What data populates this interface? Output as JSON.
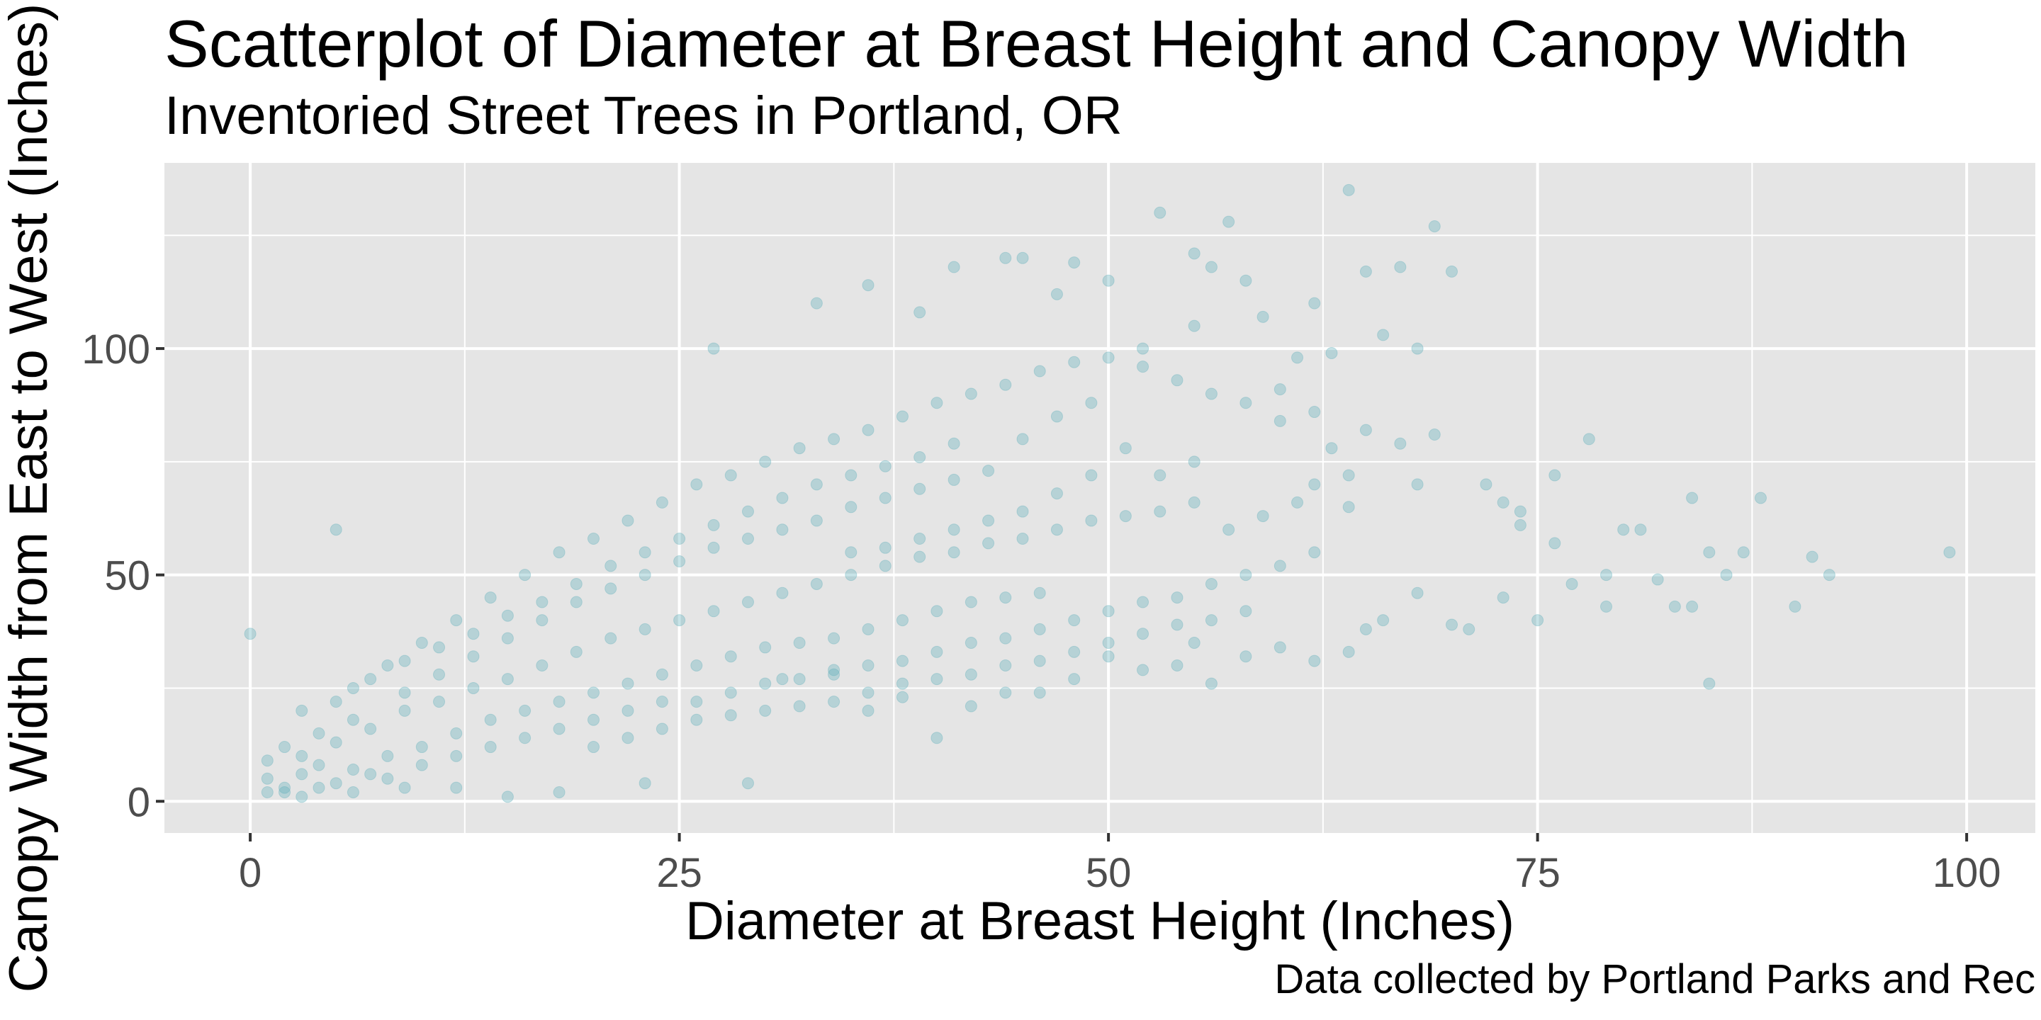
{
  "chart_data": {
    "type": "scatter",
    "title": "Scatterplot of Diameter at Breast Height and Canopy Width",
    "subtitle": "Inventoried Street Trees in Portland, OR",
    "caption": "Data collected by Portland Parks and Rec",
    "xlabel": "Diameter at Breast Height (Inches)",
    "ylabel": "Canopy Width from East to West (Inches)",
    "xlim": [
      -5,
      104
    ],
    "ylim": [
      -7,
      141
    ],
    "x_ticks": [
      0,
      25,
      50,
      75,
      100
    ],
    "y_ticks": [
      0,
      50,
      100
    ],
    "grid": true,
    "point_color": "#5fb0bb",
    "point_opacity": 0.35,
    "panel_color": "#e5e5e5",
    "grid_color": "#ffffff",
    "points": [
      [
        0,
        37
      ],
      [
        5,
        60
      ],
      [
        64,
        135
      ],
      [
        53,
        130
      ],
      [
        57,
        128
      ],
      [
        69,
        127
      ],
      [
        55,
        121
      ],
      [
        56,
        118
      ],
      [
        58,
        115
      ],
      [
        48,
        119
      ],
      [
        41,
        118
      ],
      [
        44,
        120
      ],
      [
        45,
        120
      ],
      [
        67,
        118
      ],
      [
        70,
        117
      ],
      [
        65,
        117
      ],
      [
        50,
        115
      ],
      [
        62,
        110
      ],
      [
        59,
        107
      ],
      [
        66,
        103
      ],
      [
        68,
        100
      ],
      [
        63,
        99
      ],
      [
        61,
        98
      ],
      [
        27,
        100
      ],
      [
        36,
        114
      ],
      [
        33,
        110
      ],
      [
        47,
        112
      ],
      [
        39,
        108
      ],
      [
        55,
        105
      ],
      [
        52,
        100
      ],
      [
        60,
        91
      ],
      [
        60,
        84
      ],
      [
        62,
        86
      ],
      [
        65,
        82
      ],
      [
        67,
        79
      ],
      [
        69,
        81
      ],
      [
        63,
        78
      ],
      [
        64,
        72
      ],
      [
        62,
        70
      ],
      [
        64,
        65
      ],
      [
        68,
        70
      ],
      [
        72,
        70
      ],
      [
        74,
        64
      ],
      [
        78,
        80
      ],
      [
        76,
        72
      ],
      [
        80,
        60
      ],
      [
        81,
        60
      ],
      [
        84,
        67
      ],
      [
        88,
        67
      ],
      [
        85,
        55
      ],
      [
        86,
        50
      ],
      [
        87,
        55
      ],
      [
        91,
        54
      ],
      [
        92,
        50
      ],
      [
        99,
        55
      ],
      [
        84,
        43
      ],
      [
        83,
        43
      ],
      [
        85,
        26
      ],
      [
        90,
        43
      ],
      [
        82,
        49
      ],
      [
        79,
        43
      ],
      [
        77,
        48
      ],
      [
        73,
        66
      ],
      [
        74,
        61
      ],
      [
        76,
        57
      ],
      [
        79,
        50
      ],
      [
        75,
        40
      ],
      [
        73,
        45
      ],
      [
        71,
        38
      ],
      [
        70,
        39
      ],
      [
        68,
        46
      ],
      [
        66,
        40
      ],
      [
        65,
        38
      ],
      [
        64,
        33
      ],
      [
        62,
        31
      ],
      [
        60,
        34
      ],
      [
        58,
        32
      ],
      [
        56,
        26
      ],
      [
        55,
        35
      ],
      [
        54,
        30
      ],
      [
        52,
        29
      ],
      [
        50,
        32
      ],
      [
        48,
        27
      ],
      [
        46,
        24
      ],
      [
        44,
        24
      ],
      [
        42,
        21
      ],
      [
        40,
        14
      ],
      [
        38,
        23
      ],
      [
        36,
        20
      ],
      [
        34,
        28
      ],
      [
        31,
        27
      ],
      [
        29,
        4
      ],
      [
        23,
        4
      ],
      [
        18,
        2
      ],
      [
        15,
        1
      ],
      [
        12,
        3
      ],
      [
        9,
        3
      ],
      [
        6,
        2
      ],
      [
        3,
        1
      ],
      [
        1,
        2
      ],
      [
        2,
        3
      ],
      [
        1,
        5
      ],
      [
        3,
        6
      ],
      [
        4,
        8
      ],
      [
        2,
        12
      ],
      [
        1,
        9
      ],
      [
        5,
        4
      ],
      [
        7,
        6
      ],
      [
        8,
        10
      ],
      [
        10,
        8
      ],
      [
        2,
        2
      ],
      [
        4,
        3
      ],
      [
        6,
        7
      ],
      [
        3,
        10
      ],
      [
        5,
        13
      ],
      [
        7,
        16
      ],
      [
        9,
        20
      ],
      [
        11,
        22
      ],
      [
        13,
        25
      ],
      [
        15,
        27
      ],
      [
        17,
        30
      ],
      [
        19,
        33
      ],
      [
        21,
        36
      ],
      [
        23,
        38
      ],
      [
        25,
        40
      ],
      [
        27,
        42
      ],
      [
        29,
        44
      ],
      [
        31,
        46
      ],
      [
        33,
        48
      ],
      [
        35,
        50
      ],
      [
        37,
        52
      ],
      [
        39,
        54
      ],
      [
        41,
        55
      ],
      [
        43,
        57
      ],
      [
        45,
        58
      ],
      [
        47,
        60
      ],
      [
        49,
        62
      ],
      [
        51,
        63
      ],
      [
        53,
        64
      ],
      [
        55,
        66
      ],
      [
        8,
        5
      ],
      [
        10,
        12
      ],
      [
        12,
        15
      ],
      [
        14,
        18
      ],
      [
        16,
        20
      ],
      [
        18,
        22
      ],
      [
        20,
        24
      ],
      [
        22,
        26
      ],
      [
        24,
        28
      ],
      [
        26,
        30
      ],
      [
        28,
        32
      ],
      [
        30,
        34
      ],
      [
        32,
        35
      ],
      [
        34,
        36
      ],
      [
        36,
        38
      ],
      [
        38,
        40
      ],
      [
        40,
        42
      ],
      [
        42,
        44
      ],
      [
        44,
        45
      ],
      [
        46,
        46
      ],
      [
        6,
        25
      ],
      [
        8,
        30
      ],
      [
        10,
        35
      ],
      [
        12,
        40
      ],
      [
        14,
        45
      ],
      [
        16,
        50
      ],
      [
        18,
        55
      ],
      [
        20,
        58
      ],
      [
        22,
        62
      ],
      [
        24,
        66
      ],
      [
        26,
        70
      ],
      [
        28,
        72
      ],
      [
        30,
        75
      ],
      [
        32,
        78
      ],
      [
        34,
        80
      ],
      [
        36,
        82
      ],
      [
        38,
        85
      ],
      [
        40,
        88
      ],
      [
        42,
        90
      ],
      [
        44,
        92
      ],
      [
        46,
        95
      ],
      [
        48,
        97
      ],
      [
        50,
        98
      ],
      [
        52,
        96
      ],
      [
        54,
        93
      ],
      [
        56,
        90
      ],
      [
        58,
        88
      ],
      [
        45,
        80
      ],
      [
        47,
        85
      ],
      [
        49,
        88
      ],
      [
        4,
        15
      ],
      [
        6,
        18
      ],
      [
        9,
        24
      ],
      [
        11,
        28
      ],
      [
        13,
        32
      ],
      [
        15,
        36
      ],
      [
        17,
        40
      ],
      [
        19,
        44
      ],
      [
        21,
        47
      ],
      [
        23,
        50
      ],
      [
        25,
        53
      ],
      [
        27,
        56
      ],
      [
        29,
        58
      ],
      [
        31,
        60
      ],
      [
        33,
        62
      ],
      [
        35,
        65
      ],
      [
        37,
        67
      ],
      [
        39,
        69
      ],
      [
        41,
        71
      ],
      [
        43,
        73
      ],
      [
        12,
        10
      ],
      [
        14,
        12
      ],
      [
        16,
        14
      ],
      [
        18,
        16
      ],
      [
        20,
        18
      ],
      [
        22,
        20
      ],
      [
        24,
        22
      ],
      [
        26,
        22
      ],
      [
        28,
        24
      ],
      [
        30,
        26
      ],
      [
        32,
        27
      ],
      [
        34,
        29
      ],
      [
        36,
        30
      ],
      [
        38,
        31
      ],
      [
        40,
        33
      ],
      [
        42,
        35
      ],
      [
        44,
        36
      ],
      [
        46,
        38
      ],
      [
        48,
        40
      ],
      [
        50,
        42
      ],
      [
        52,
        44
      ],
      [
        54,
        45
      ],
      [
        56,
        48
      ],
      [
        58,
        50
      ],
      [
        60,
        52
      ],
      [
        62,
        55
      ],
      [
        57,
        60
      ],
      [
        59,
        63
      ],
      [
        61,
        66
      ],
      [
        53,
        72
      ],
      [
        55,
        75
      ],
      [
        51,
        78
      ],
      [
        49,
        72
      ],
      [
        47,
        68
      ],
      [
        45,
        64
      ],
      [
        43,
        62
      ],
      [
        41,
        60
      ],
      [
        39,
        58
      ],
      [
        37,
        56
      ],
      [
        35,
        55
      ],
      [
        3,
        20
      ],
      [
        5,
        22
      ],
      [
        7,
        27
      ],
      [
        9,
        31
      ],
      [
        11,
        34
      ],
      [
        13,
        37
      ],
      [
        15,
        41
      ],
      [
        17,
        44
      ],
      [
        19,
        48
      ],
      [
        21,
        52
      ],
      [
        23,
        55
      ],
      [
        25,
        58
      ],
      [
        27,
        61
      ],
      [
        29,
        64
      ],
      [
        31,
        67
      ],
      [
        33,
        70
      ],
      [
        35,
        72
      ],
      [
        37,
        74
      ],
      [
        39,
        76
      ],
      [
        41,
        79
      ],
      [
        20,
        12
      ],
      [
        22,
        14
      ],
      [
        24,
        16
      ],
      [
        26,
        18
      ],
      [
        28,
        19
      ],
      [
        30,
        20
      ],
      [
        32,
        21
      ],
      [
        34,
        22
      ],
      [
        36,
        24
      ],
      [
        38,
        26
      ],
      [
        40,
        27
      ],
      [
        42,
        28
      ],
      [
        44,
        30
      ],
      [
        46,
        31
      ],
      [
        48,
        33
      ],
      [
        50,
        35
      ],
      [
        52,
        37
      ],
      [
        54,
        39
      ],
      [
        56,
        40
      ],
      [
        58,
        42
      ]
    ]
  }
}
